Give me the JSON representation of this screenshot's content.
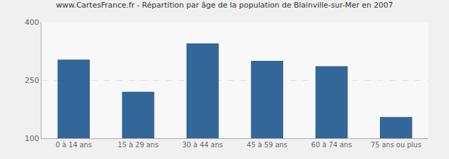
{
  "chart_data": {
    "type": "bar",
    "title": "www.CartesFrance.fr - Répartition par âge de la population de Blainville-sur-Mer en 2007",
    "categories": [
      "0 à 14 ans",
      "15 à 29 ans",
      "30 à 44 ans",
      "45 à 59 ans",
      "60 à 74 ans",
      "75 ans ou plus"
    ],
    "values": [
      303,
      220,
      345,
      300,
      286,
      155
    ],
    "color": "#336699",
    "ylim": [
      100,
      400
    ],
    "yticks": [
      100,
      250,
      400
    ],
    "grid": true
  }
}
